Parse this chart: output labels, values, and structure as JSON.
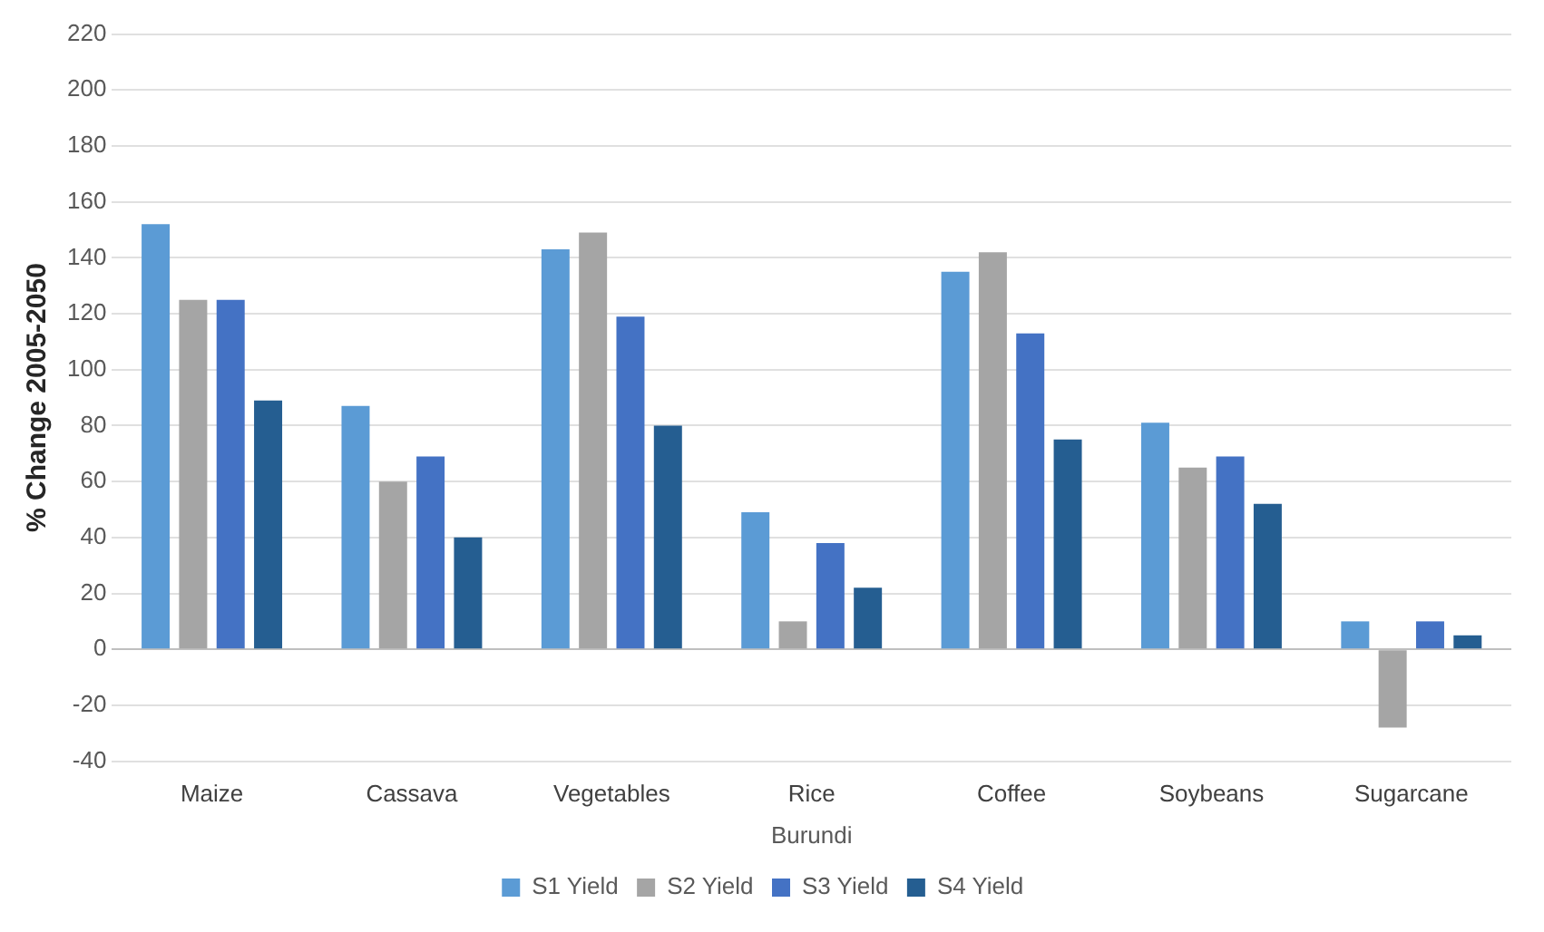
{
  "chart_data": {
    "type": "bar",
    "xlabel": "Burundi",
    "ylabel": "% Change 2005-2050",
    "categories": [
      "Maize",
      "Cassava",
      "Vegetables",
      "Rice",
      "Coffee",
      "Soybeans",
      "Sugarcane"
    ],
    "series": [
      {
        "name": "S1 Yield",
        "color": "#5b9bd5",
        "values": [
          152,
          87,
          143,
          49,
          135,
          81,
          10
        ]
      },
      {
        "name": "S2 Yield",
        "color": "#a5a5a5",
        "values": [
          125,
          60,
          149,
          10,
          142,
          65,
          -28
        ]
      },
      {
        "name": "S3 Yield",
        "color": "#4472c4",
        "values": [
          125,
          69,
          119,
          38,
          113,
          69,
          10
        ]
      },
      {
        "name": "S4 Yield",
        "color": "#255e91",
        "values": [
          89,
          40,
          80,
          22,
          75,
          52,
          5
        ]
      }
    ],
    "ylim": [
      -40,
      220
    ],
    "yticks": [
      -40,
      -20,
      0,
      20,
      40,
      60,
      80,
      100,
      120,
      140,
      160,
      180,
      200,
      220
    ],
    "grid": "y",
    "legend": "bottom"
  }
}
